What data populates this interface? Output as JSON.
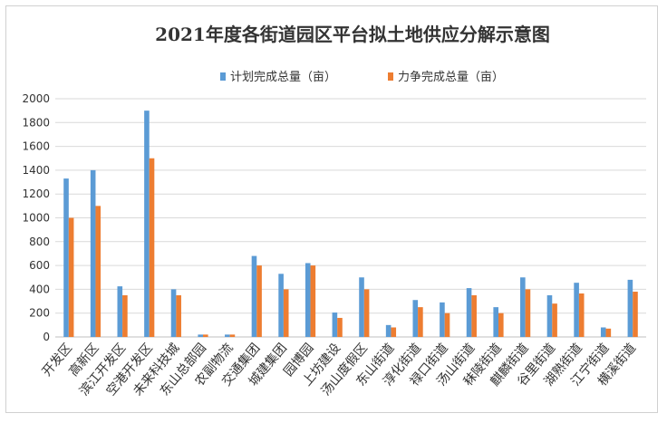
{
  "chart_data": {
    "type": "bar",
    "title": "2021年度各街道园区平台拟土地供应分解示意图",
    "xlabel": "",
    "ylabel": "",
    "ylim": [
      0,
      2000
    ],
    "yticks": [
      0,
      200,
      400,
      600,
      800,
      1000,
      1200,
      1400,
      1600,
      1800,
      2000
    ],
    "grid": true,
    "legend_position": "top",
    "categories": [
      "开发区",
      "高新区",
      "滨江开发区",
      "空港开发区",
      "未来科技城",
      "东山总部园",
      "农副物流",
      "交通集团",
      "城建集团",
      "园博园",
      "上坊建设",
      "汤山度假区",
      "东山街道",
      "淳化街道",
      "禄口街道",
      "汤山街道",
      "秣陵街道",
      "麒麟街道",
      "谷里街道",
      "湖熟街道",
      "江宁街道",
      "横溪街道"
    ],
    "series": [
      {
        "name": "计划完成总量（亩）",
        "color": "#5b9bd5",
        "values": [
          1330,
          1400,
          425,
          1900,
          400,
          20,
          20,
          680,
          530,
          620,
          205,
          500,
          100,
          310,
          290,
          410,
          250,
          500,
          350,
          455,
          80,
          480
        ]
      },
      {
        "name": "力争完成总量（亩）",
        "color": "#ed7d31",
        "values": [
          1000,
          1100,
          350,
          1500,
          350,
          20,
          20,
          600,
          400,
          600,
          160,
          400,
          80,
          250,
          200,
          350,
          200,
          400,
          280,
          365,
          70,
          380
        ]
      }
    ]
  }
}
